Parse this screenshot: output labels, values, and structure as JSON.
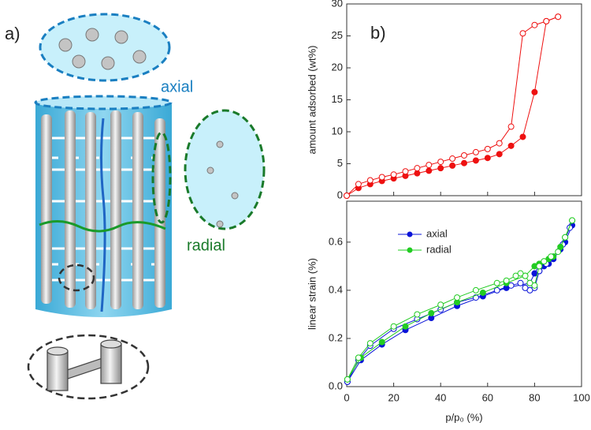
{
  "diagram": {
    "panel_label": "a)",
    "labels": [
      "axial",
      "radial"
    ]
  },
  "chart_data": [
    {
      "type": "scatter",
      "panel_label": "b)",
      "ylabel": "amount adsorbed (wt%)",
      "xlim": [
        0,
        100
      ],
      "xticks": [
        0,
        20,
        40,
        60,
        80,
        100
      ],
      "ylim": [
        0,
        30
      ],
      "yticks": [
        0,
        5,
        10,
        15,
        20,
        25,
        30
      ],
      "grid": false,
      "series": [
        {
          "color": "#ee1111",
          "filled": true,
          "x": [
            0,
            5,
            10,
            15,
            20,
            25,
            30,
            35,
            40,
            45,
            50,
            55,
            60,
            65,
            70,
            75,
            80,
            85,
            90
          ],
          "values": [
            0,
            1.2,
            1.8,
            2.3,
            2.7,
            3.1,
            3.5,
            3.9,
            4.3,
            4.7,
            5.1,
            5.5,
            5.9,
            6.5,
            7.8,
            9.2,
            16.2,
            27.3,
            28
          ]
        },
        {
          "color": "#ee1111",
          "filled": false,
          "x": [
            90,
            85,
            80,
            75,
            70,
            65,
            60,
            55,
            50,
            45,
            40,
            35,
            30,
            25,
            20,
            15,
            10,
            5,
            0
          ],
          "values": [
            28,
            27.3,
            26.7,
            25.4,
            10.8,
            8.2,
            7.3,
            6.8,
            6.3,
            5.8,
            5.3,
            4.8,
            4.3,
            3.8,
            3.3,
            2.9,
            2.4,
            1.8,
            0
          ]
        }
      ]
    },
    {
      "type": "scatter",
      "ylabel": "linear strain (%)",
      "xlabel": "p/p₀ (%)",
      "xlim": [
        0,
        100
      ],
      "xticks": [
        0,
        20,
        40,
        60,
        80,
        100
      ],
      "ylim": [
        0,
        0.77
      ],
      "yticks": [
        {
          "value": 0,
          "label": "0.0"
        },
        0.2,
        0.4,
        0.6
      ],
      "grid": false,
      "legend": "upper left",
      "series": [
        {
          "name": "axial",
          "color": "#0a14d8",
          "filled": true,
          "x": [
            0.3,
            6,
            15,
            25,
            36,
            47,
            58,
            68,
            78,
            80,
            82,
            84,
            86,
            88,
            91,
            93,
            96
          ],
          "values": [
            0.02,
            0.11,
            0.175,
            0.235,
            0.285,
            0.335,
            0.375,
            0.41,
            0.43,
            0.47,
            0.48,
            0.5,
            0.51,
            0.53,
            0.57,
            0.6,
            0.67
          ]
        },
        {
          "color": "#0a14d8",
          "filled": false,
          "x": [
            95,
            92,
            88,
            85,
            82,
            80,
            78,
            76,
            74,
            70,
            64,
            55,
            47,
            40,
            30,
            20,
            10,
            5,
            0.3
          ],
          "values": [
            0.66,
            0.59,
            0.54,
            0.51,
            0.48,
            0.41,
            0.4,
            0.41,
            0.43,
            0.42,
            0.4,
            0.37,
            0.35,
            0.32,
            0.28,
            0.24,
            0.17,
            0.11,
            0.02
          ]
        },
        {
          "name": "radial",
          "color": "#22cc22",
          "filled": true,
          "x": [
            0.3,
            6,
            15,
            25,
            36,
            47,
            58,
            68,
            76,
            80,
            82,
            84,
            86,
            88,
            91,
            93,
            96
          ],
          "values": [
            0.03,
            0.12,
            0.185,
            0.25,
            0.305,
            0.35,
            0.39,
            0.43,
            0.46,
            0.5,
            0.51,
            0.52,
            0.53,
            0.54,
            0.58,
            0.62,
            0.69
          ]
        },
        {
          "color": "#22cc22",
          "filled": false,
          "x": [
            96,
            93,
            90,
            87,
            84,
            82,
            80,
            78,
            76,
            74,
            72,
            68,
            64,
            55,
            47,
            40,
            30,
            20,
            10,
            5,
            0.3
          ],
          "values": [
            0.69,
            0.62,
            0.56,
            0.54,
            0.52,
            0.5,
            0.42,
            0.43,
            0.46,
            0.47,
            0.46,
            0.44,
            0.43,
            0.4,
            0.37,
            0.34,
            0.3,
            0.25,
            0.18,
            0.12,
            0.03
          ]
        }
      ]
    }
  ]
}
